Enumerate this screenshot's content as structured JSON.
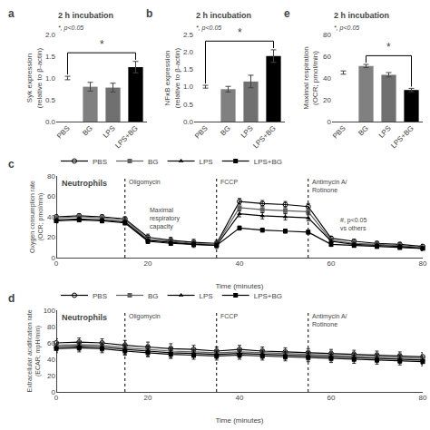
{
  "chart_data": [
    {
      "type": "bar",
      "panel_label": "a",
      "title": "2 h incubation",
      "ylabel": "Syk expression\n(relative to β-actin)",
      "categories": [
        "PBS",
        "BG",
        "LPS",
        "LPS+BG"
      ],
      "values": [
        1.0,
        0.8,
        0.78,
        1.25
      ],
      "errors": [
        0.04,
        0.1,
        0.1,
        0.13
      ],
      "colors": [
        "white",
        "#808080",
        "#707070",
        "black"
      ],
      "ylim": [
        0,
        2.0
      ],
      "yticks": [
        {
          "value": 0,
          "label": "0.0"
        },
        0.5,
        {
          "value": 1,
          "label": "1.0"
        },
        1.5,
        {
          "value": 2,
          "label": "2.0"
        }
      ],
      "annotation": "*, p<0.05",
      "significance": {
        "between": [
          "PBS",
          "LPS+BG"
        ],
        "label": "*"
      },
      "grid": false
    },
    {
      "type": "bar",
      "panel_label": "b",
      "title": "2 h incubation",
      "ylabel": "NFκB expression\n(relative to β-actin)",
      "categories": [
        "PBS",
        "BG",
        "LPS",
        "LPS+BG"
      ],
      "values": [
        1.0,
        0.93,
        1.15,
        1.88
      ],
      "errors": [
        0.04,
        0.08,
        0.18,
        0.18
      ],
      "colors": [
        "white",
        "#808080",
        "#707070",
        "black"
      ],
      "ylim": [
        0,
        2.5
      ],
      "yticks": [
        {
          "value": 0,
          "label": "0.0"
        },
        0.5,
        {
          "value": 1,
          "label": "1.0"
        },
        1.5,
        {
          "value": 2,
          "label": "2.0"
        },
        2.5
      ],
      "annotation": "*, p<0.05",
      "significance": {
        "between": [
          "PBS",
          "LPS+BG"
        ],
        "label": "*"
      },
      "grid": false
    },
    {
      "type": "line",
      "panel_label": "c",
      "title": "Neutrophils",
      "xlabel": "Time (minutes)",
      "ylabel": "Oxygen consumption rate\n(OCR; pmol/min)",
      "x": [
        0,
        5,
        10,
        15,
        20,
        25,
        30,
        35,
        40,
        45,
        50,
        55,
        60,
        65,
        70,
        75,
        80
      ],
      "series": [
        {
          "name": "PBS",
          "color": "black",
          "marker": "circle-open",
          "values": [
            40,
            41,
            40,
            38,
            20,
            17,
            15,
            14,
            55,
            53,
            52,
            50,
            19,
            16,
            14,
            13,
            11
          ],
          "errors": [
            2,
            2,
            2,
            2,
            3,
            3,
            3,
            3,
            3,
            3,
            3,
            3,
            2,
            2,
            2,
            2,
            2
          ]
        },
        {
          "name": "BG",
          "color": "#606060",
          "marker": "square",
          "values": [
            39,
            40,
            39,
            37,
            18,
            16,
            14,
            13,
            49,
            47,
            46,
            45,
            17,
            14,
            13,
            12,
            10
          ],
          "errors": [
            2,
            2,
            2,
            2,
            3,
            3,
            3,
            3,
            3,
            3,
            3,
            3,
            2,
            2,
            2,
            2,
            2
          ]
        },
        {
          "name": "LPS",
          "color": "black",
          "marker": "triangle-up",
          "values": [
            37,
            38,
            37,
            35,
            17,
            15,
            13,
            12,
            43,
            41,
            40,
            39,
            16,
            13,
            12,
            11,
            9
          ],
          "errors": [
            2,
            2,
            2,
            2,
            3,
            3,
            3,
            3,
            3,
            3,
            3,
            3,
            2,
            2,
            2,
            2,
            2
          ]
        },
        {
          "name": "LPS+BG",
          "color": "black",
          "marker": "square",
          "values": [
            36,
            37,
            36,
            34,
            16,
            14,
            13,
            12,
            29,
            27,
            26,
            25,
            13,
            12,
            11,
            10,
            9
          ],
          "errors": [
            2,
            2,
            2,
            2,
            2,
            2,
            2,
            2,
            2,
            2,
            2,
            2,
            2,
            2,
            2,
            2,
            2
          ]
        }
      ],
      "xlim": [
        0,
        80
      ],
      "xticks": [
        0,
        20,
        40,
        60,
        80
      ],
      "ylim": [
        0,
        80
      ],
      "yticks": [
        0,
        20,
        40,
        60,
        80
      ],
      "vlines": [
        {
          "x": 15,
          "label": "Oligomycin"
        },
        {
          "x": 35,
          "label": "FCCP"
        },
        {
          "x": 55,
          "label": "Antimycin A/\nRotinone"
        }
      ],
      "annotations": [
        "Maximal\nrespiratory\ncapacity",
        "#, p<0.05\nvs others"
      ],
      "legend": "top",
      "grid": false
    },
    {
      "type": "line",
      "panel_label": "d",
      "title": "Neutrophils",
      "xlabel": "Time (minutes)",
      "ylabel": "Extracellular acidification rate\n(ECAR; mpH/min)",
      "x": [
        0,
        5,
        10,
        15,
        20,
        25,
        30,
        35,
        40,
        45,
        50,
        55,
        60,
        65,
        70,
        75,
        80
      ],
      "series": [
        {
          "name": "PBS",
          "color": "black",
          "marker": "circle-open",
          "values": [
            60,
            61,
            60,
            57,
            55,
            53,
            52,
            50,
            52,
            50,
            49,
            48,
            47,
            46,
            45,
            44,
            43
          ],
          "errors": [
            5,
            5,
            5,
            6,
            6,
            6,
            5,
            5,
            5,
            5,
            5,
            5,
            5,
            5,
            5,
            5,
            5
          ]
        },
        {
          "name": "BG",
          "color": "#606060",
          "marker": "square",
          "values": [
            57,
            58,
            57,
            54,
            52,
            50,
            49,
            48,
            49,
            48,
            47,
            46,
            45,
            44,
            43,
            42,
            41
          ],
          "errors": [
            5,
            5,
            5,
            6,
            6,
            6,
            5,
            5,
            5,
            5,
            5,
            5,
            5,
            5,
            5,
            5,
            5
          ]
        },
        {
          "name": "LPS",
          "color": "black",
          "marker": "triangle-up",
          "values": [
            55,
            56,
            55,
            52,
            50,
            48,
            47,
            46,
            47,
            46,
            45,
            44,
            43,
            42,
            41,
            40,
            39
          ],
          "errors": [
            5,
            5,
            5,
            6,
            6,
            6,
            5,
            5,
            5,
            5,
            5,
            5,
            5,
            5,
            5,
            5,
            5
          ]
        },
        {
          "name": "LPS+BG",
          "color": "black",
          "marker": "square",
          "values": [
            53,
            54,
            53,
            50,
            48,
            46,
            45,
            44,
            45,
            44,
            43,
            42,
            41,
            40,
            39,
            38,
            37
          ],
          "errors": [
            5,
            5,
            5,
            5,
            5,
            5,
            5,
            5,
            5,
            5,
            5,
            5,
            5,
            5,
            5,
            5,
            5
          ]
        }
      ],
      "xlim": [
        0,
        80
      ],
      "xticks": [
        0,
        20,
        40,
        60,
        80
      ],
      "ylim": [
        0,
        100
      ],
      "yticks": [
        0,
        20,
        40,
        60,
        80,
        100
      ],
      "vlines": [
        {
          "x": 15,
          "label": "Oligomycin"
        },
        {
          "x": 35,
          "label": "FCCP"
        },
        {
          "x": 55,
          "label": "Antimycin A/\nRotinone"
        }
      ],
      "legend": "top",
      "grid": false
    },
    {
      "type": "bar",
      "panel_label": "e",
      "title": "2 h incubation",
      "ylabel": "Maximal respiration\n(OCR; pmol/min)",
      "categories": [
        "PBS",
        "BG",
        "LPS",
        "LPS+BG"
      ],
      "values": [
        45,
        51,
        43,
        29
      ],
      "errors": [
        1.5,
        1.5,
        2.0,
        1.5
      ],
      "colors": [
        "white",
        "#808080",
        "#707070",
        "black"
      ],
      "ylim": [
        0,
        80
      ],
      "yticks": [
        0,
        20,
        40,
        60,
        80
      ],
      "annotation": "*, p<0.05",
      "significance": {
        "between": [
          "BG",
          "LPS+BG"
        ],
        "label": "*"
      },
      "grid": false
    }
  ]
}
